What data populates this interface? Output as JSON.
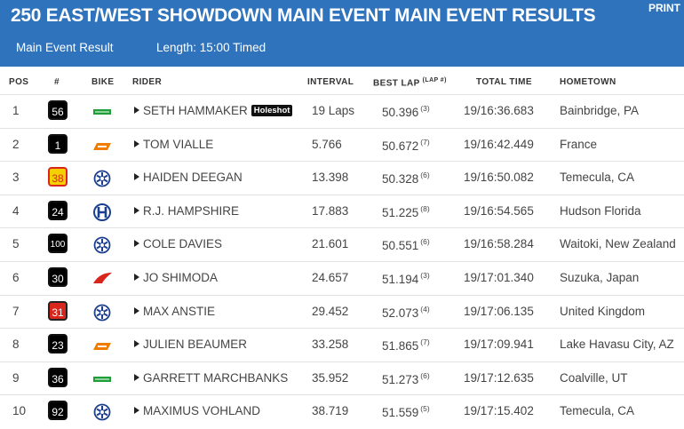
{
  "header": {
    "title": "250 EAST/WEST SHOWDOWN MAIN EVENT MAIN EVENT RESULTS",
    "print": "PRINT",
    "subtitle": "Main Event Result",
    "length": "Length: 15:00 Timed"
  },
  "table": {
    "columns": {
      "pos": "POS",
      "number": "#",
      "bike": "BIKE",
      "rider": "RIDER",
      "interval": "INTERVAL",
      "best_lap": "BEST LAP",
      "lap_note": "(LAP #)",
      "total_time": "TOTAL TIME",
      "hometown": "HOMETOWN"
    },
    "rows": [
      {
        "pos": "1",
        "number": "56",
        "rider": "SETH HAMMAKER",
        "badge": "Holeshot",
        "interval": "19 Laps",
        "best_lap": "50.396",
        "lap": "(3)",
        "total_time": "19/16:36.683",
        "hometown": "Bainbridge, PA"
      },
      {
        "pos": "2",
        "number": "1",
        "rider": "TOM VIALLE",
        "interval": "5.766",
        "best_lap": "50.672",
        "lap": "(7)",
        "total_time": "19/16:42.449",
        "hometown": "France"
      },
      {
        "pos": "3",
        "number": "38",
        "rider": "HAIDEN DEEGAN",
        "interval": "13.398",
        "best_lap": "50.328",
        "lap": "(6)",
        "total_time": "19/16:50.082",
        "hometown": "Temecula, CA"
      },
      {
        "pos": "4",
        "number": "24",
        "rider": "R.J. HAMPSHIRE",
        "interval": "17.883",
        "best_lap": "51.225",
        "lap": "(8)",
        "total_time": "19/16:54.565",
        "hometown": "Hudson Florida"
      },
      {
        "pos": "5",
        "number": "100",
        "rider": "COLE DAVIES",
        "interval": "21.601",
        "best_lap": "50.551",
        "lap": "(6)",
        "total_time": "19/16:58.284",
        "hometown": "Waitoki, New Zealand"
      },
      {
        "pos": "6",
        "number": "30",
        "rider": "JO SHIMODA",
        "interval": "24.657",
        "best_lap": "51.194",
        "lap": "(3)",
        "total_time": "19/17:01.340",
        "hometown": "Suzuka, Japan"
      },
      {
        "pos": "7",
        "number": "31",
        "rider": "MAX ANSTIE",
        "interval": "29.452",
        "best_lap": "52.073",
        "lap": "(4)",
        "total_time": "19/17:06.135",
        "hometown": "United Kingdom"
      },
      {
        "pos": "8",
        "number": "23",
        "rider": "JULIEN BEAUMER",
        "interval": "33.258",
        "best_lap": "51.865",
        "lap": "(7)",
        "total_time": "19/17:09.941",
        "hometown": "Lake Havasu City, AZ"
      },
      {
        "pos": "9",
        "number": "36",
        "rider": "GARRETT MARCHBANKS",
        "interval": "35.952",
        "best_lap": "51.273",
        "lap": "(6)",
        "total_time": "19/17:12.635",
        "hometown": "Coalville, UT"
      },
      {
        "pos": "10",
        "number": "92",
        "rider": "MAXIMUS VOHLAND",
        "interval": "38.719",
        "best_lap": "51.559",
        "lap": "(5)",
        "total_time": "19/17:15.402",
        "hometown": "Temecula, CA"
      }
    ]
  }
}
